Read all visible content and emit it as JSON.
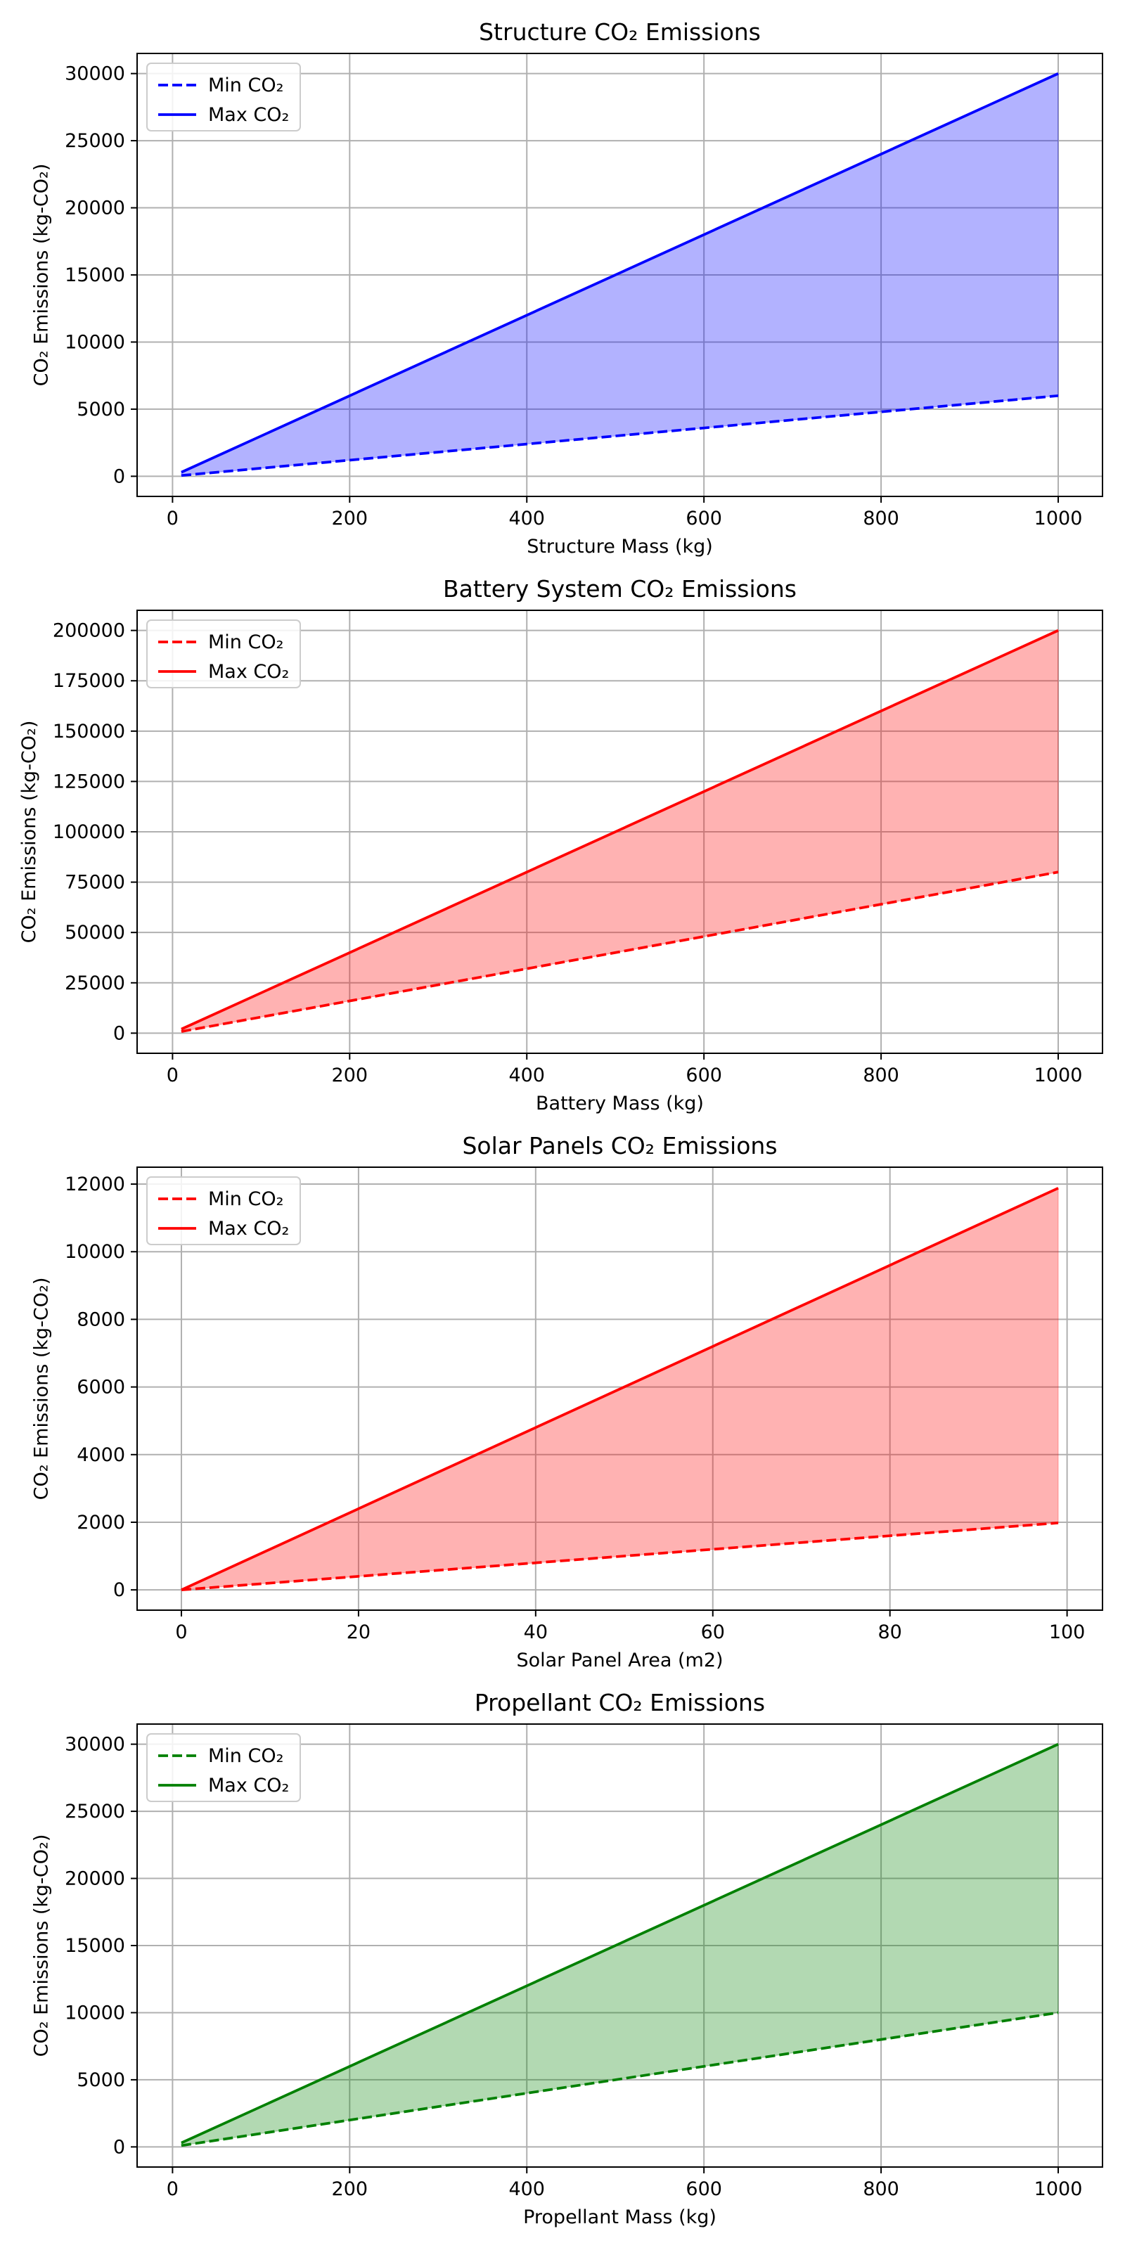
{
  "figure": {
    "background": "#ffffff",
    "grid_color": "#b0b0b0",
    "fill_alpha": 0.3
  },
  "chart_data": [
    {
      "type": "area",
      "title": "Structure CO₂ Emissions",
      "xlabel": "Structure Mass (kg)",
      "ylabel": "CO₂ Emissions (kg-CO₂)",
      "color": "#0000ff",
      "x": [
        10,
        1000
      ],
      "xlim": [
        -40,
        1050
      ],
      "ylim": [
        -1500,
        31500
      ],
      "xticks": [
        0,
        200,
        400,
        600,
        800,
        1000
      ],
      "yticks": [
        0,
        5000,
        10000,
        15000,
        20000,
        25000,
        30000
      ],
      "grid": true,
      "legend_position": "upper-left",
      "series": [
        {
          "name": "Min CO₂",
          "style": "dashed",
          "values": [
            60,
            6000
          ]
        },
        {
          "name": "Max CO₂",
          "style": "solid",
          "values": [
            300,
            30000
          ]
        }
      ]
    },
    {
      "type": "area",
      "title": "Battery System CO₂ Emissions",
      "xlabel": "Battery Mass (kg)",
      "ylabel": "CO₂ Emissions (kg-CO₂)",
      "color": "#ff0000",
      "x": [
        10,
        1000
      ],
      "xlim": [
        -40,
        1050
      ],
      "ylim": [
        -10000,
        210000
      ],
      "xticks": [
        0,
        200,
        400,
        600,
        800,
        1000
      ],
      "yticks": [
        0,
        25000,
        50000,
        75000,
        100000,
        125000,
        150000,
        175000,
        200000
      ],
      "grid": true,
      "legend_position": "upper-left",
      "series": [
        {
          "name": "Min CO₂",
          "style": "dashed",
          "values": [
            800,
            80000
          ]
        },
        {
          "name": "Max CO₂",
          "style": "solid",
          "values": [
            2000,
            200000
          ]
        }
      ]
    },
    {
      "type": "area",
      "title": "Solar Panels CO₂ Emissions",
      "xlabel": "Solar Panel Area (m2)",
      "ylabel": "CO₂ Emissions (kg-CO₂)",
      "color": "#ff0000",
      "x": [
        0,
        99
      ],
      "xlim": [
        -5,
        104
      ],
      "ylim": [
        -600,
        12500
      ],
      "xticks": [
        0,
        20,
        40,
        60,
        80,
        100
      ],
      "yticks": [
        0,
        2000,
        4000,
        6000,
        8000,
        10000,
        12000
      ],
      "grid": true,
      "legend_position": "upper-left",
      "series": [
        {
          "name": "Min CO₂",
          "style": "dashed",
          "values": [
            0,
            1980
          ]
        },
        {
          "name": "Max CO₂",
          "style": "solid",
          "values": [
            0,
            11880
          ]
        }
      ]
    },
    {
      "type": "area",
      "title": "Propellant CO₂ Emissions",
      "xlabel": "Propellant Mass (kg)",
      "ylabel": "CO₂ Emissions (kg-CO₂)",
      "color": "#008000",
      "x": [
        10,
        1000
      ],
      "xlim": [
        -40,
        1050
      ],
      "ylim": [
        -1500,
        31500
      ],
      "xticks": [
        0,
        200,
        400,
        600,
        800,
        1000
      ],
      "yticks": [
        0,
        5000,
        10000,
        15000,
        20000,
        25000,
        30000
      ],
      "grid": true,
      "legend_position": "upper-left",
      "series": [
        {
          "name": "Min CO₂",
          "style": "dashed",
          "values": [
            100,
            10000
          ]
        },
        {
          "name": "Max CO₂",
          "style": "solid",
          "values": [
            300,
            30000
          ]
        }
      ]
    }
  ]
}
